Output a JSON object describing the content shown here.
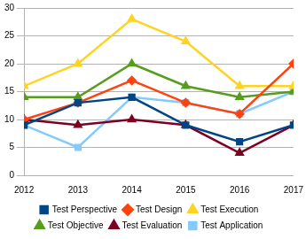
{
  "chart_data": {
    "type": "line",
    "categories": [
      "2012",
      "2013",
      "2014",
      "2015",
      "2016",
      "2017"
    ],
    "series": [
      {
        "name": "Test Perspective",
        "color": "#004586",
        "marker": "square",
        "values": [
          9,
          13,
          14,
          9,
          6,
          9
        ]
      },
      {
        "name": "Test Design",
        "color": "#ff420e",
        "marker": "diamond",
        "values": [
          10,
          13,
          17,
          13,
          11,
          20
        ]
      },
      {
        "name": "Test Execution",
        "color": "#ffd320",
        "marker": "triangle",
        "values": [
          16,
          20,
          28,
          24,
          16,
          16
        ]
      },
      {
        "name": "Test Objective",
        "color": "#579d1c",
        "marker": "triangle",
        "values": [
          14,
          14,
          20,
          16,
          14,
          15
        ]
      },
      {
        "name": "Test Evaluation",
        "color": "#7e0021",
        "marker": "triangle",
        "values": [
          10,
          9,
          10,
          9,
          4,
          9
        ]
      },
      {
        "name": "Test Application",
        "color": "#83caff",
        "marker": "square",
        "values": [
          9,
          5,
          14,
          13,
          11,
          15
        ]
      }
    ],
    "ylim": [
      0,
      30
    ],
    "yticks": [
      0,
      5,
      10,
      15,
      20,
      25,
      30
    ],
    "grid": true,
    "legend": "bottom"
  }
}
